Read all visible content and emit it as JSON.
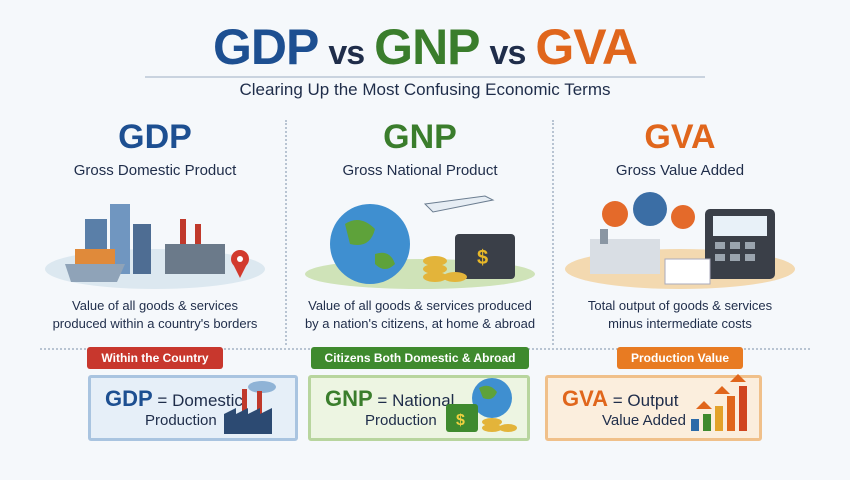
{
  "title": {
    "gdp": "GDP",
    "vs1": "vs",
    "gnp": "GNP",
    "vs2": "vs",
    "gva": "GVA"
  },
  "subtitle": "Clearing Up the Most Confusing Economic Terms",
  "colors": {
    "gdp": "#1d4f91",
    "gnp": "#3a7d2c",
    "gva": "#e0661c",
    "badge_gdp": "#c8372d",
    "badge_gnp": "#3f8a2e",
    "badge_gva": "#e87b22"
  },
  "columns": [
    {
      "abbr": "GDP",
      "full": "Gross Domestic Product",
      "desc1": "Value of all goods & services",
      "desc2": "produced within a country's borders",
      "badge": "Within the Country",
      "icons": [
        "city-icon",
        "factory-icon",
        "shopping-cart-icon",
        "location-pin-icon"
      ]
    },
    {
      "abbr": "GNP",
      "full": "Gross National Product",
      "desc1": "Value of all goods & services produced",
      "desc2": "by a nation's citizens, at home & abroad",
      "badge": "Citizens Both Domestic & Abroad",
      "icons": [
        "globe-icon",
        "airplane-icon",
        "suitcase-icon",
        "coins-icon"
      ]
    },
    {
      "abbr": "GVA",
      "full": "Gross Value Added",
      "desc1": "Total output of goods & services",
      "desc2": "minus intermediate costs",
      "badge": "Production Value",
      "icons": [
        "gears-icon",
        "factory-icon",
        "calculator-icon",
        "document-icon"
      ]
    }
  ],
  "summary": [
    {
      "abbr": "GDP",
      "eq": "= Domestic",
      "line2": "Production",
      "icon": "factory-icon"
    },
    {
      "abbr": "GNP",
      "eq": "= National",
      "line2": "Production",
      "icon": "globe-money-icon"
    },
    {
      "abbr": "GVA",
      "eq": "= Output",
      "line2": "Value Added",
      "icon": "growth-chart-icon"
    }
  ]
}
